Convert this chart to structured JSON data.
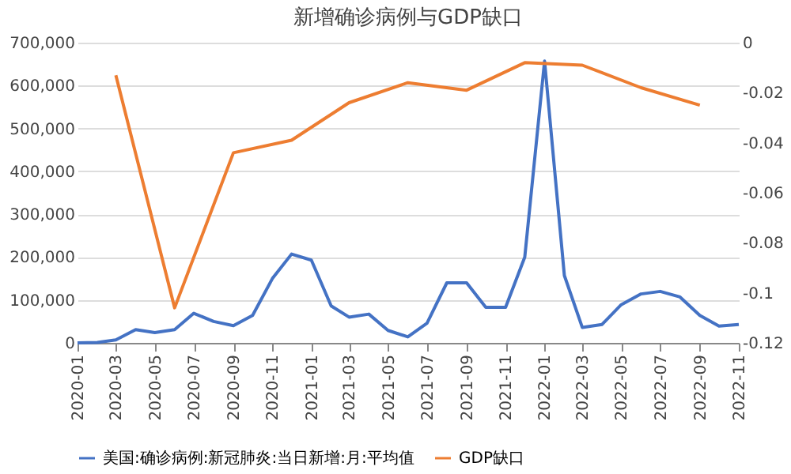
{
  "chart_data": {
    "type": "line",
    "title": "新增确诊病例与GDP缺口",
    "x": [
      "2020-01",
      "2020-02",
      "2020-03",
      "2020-04",
      "2020-05",
      "2020-06",
      "2020-07",
      "2020-08",
      "2020-09",
      "2020-10",
      "2020-11",
      "2020-12",
      "2021-01",
      "2021-02",
      "2021-03",
      "2021-04",
      "2021-05",
      "2021-06",
      "2021-07",
      "2021-08",
      "2021-09",
      "2021-10",
      "2021-11",
      "2021-12",
      "2022-01",
      "2022-02",
      "2022-03",
      "2022-04",
      "2022-05",
      "2022-06",
      "2022-07",
      "2022-08",
      "2022-09",
      "2022-10",
      "2022-11"
    ],
    "series": [
      {
        "name": "美国:确诊病例:新冠肺炎:当日新增:月:平均值",
        "color": "#4472c4",
        "values": [
          0,
          1000,
          7000,
          31000,
          24000,
          31000,
          69000,
          50000,
          40000,
          64000,
          150000,
          207000,
          193000,
          86000,
          60000,
          67000,
          29000,
          14000,
          46000,
          140000,
          140000,
          83000,
          83000,
          200000,
          657000,
          157000,
          36000,
          43000,
          89000,
          114000,
          120000,
          107000,
          64000,
          39000,
          43000
        ]
      },
      {
        "name": "GDP缺口",
        "color": "#ed7d31",
        "axis": "y2",
        "x": [
          "2020-03",
          "2020-06",
          "2020-09",
          "2020-12",
          "2021-03",
          "2021-06",
          "2021-09",
          "2021-12",
          "2022-03",
          "2022-06",
          "2022-09"
        ],
        "values": [
          -0.013,
          -0.106,
          -0.044,
          -0.039,
          -0.024,
          -0.016,
          -0.019,
          -0.008,
          -0.009,
          -0.018,
          -0.025
        ]
      }
    ],
    "xlim": [
      "2020-01",
      "2022-11"
    ],
    "xticks": [
      "2020-01",
      "2020-03",
      "2020-05",
      "2020-07",
      "2020-09",
      "2020-11",
      "2021-01",
      "2021-03",
      "2021-05",
      "2021-07",
      "2021-09",
      "2021-11",
      "2022-01",
      "2022-03",
      "2022-05",
      "2022-07",
      "2022-09",
      "2022-11"
    ],
    "ylim": [
      0,
      700000
    ],
    "yticks": [
      0,
      {
        "value": 100000,
        "label": "100,000"
      },
      {
        "value": 200000,
        "label": "200,000"
      },
      {
        "value": 300000,
        "label": "300,000"
      },
      {
        "value": 400000,
        "label": "400,000"
      },
      {
        "value": 500000,
        "label": "500,000"
      },
      {
        "value": 600000,
        "label": "600,000"
      },
      {
        "value": 700000,
        "label": "700,000"
      }
    ],
    "y2lim": [
      -0.12,
      0
    ],
    "y2ticks": [
      -0.12,
      -0.1,
      -0.08,
      -0.06,
      -0.04,
      -0.02,
      0
    ],
    "grid": "y",
    "legend": "bottom",
    "marker": "none",
    "line_style": "solid"
  }
}
